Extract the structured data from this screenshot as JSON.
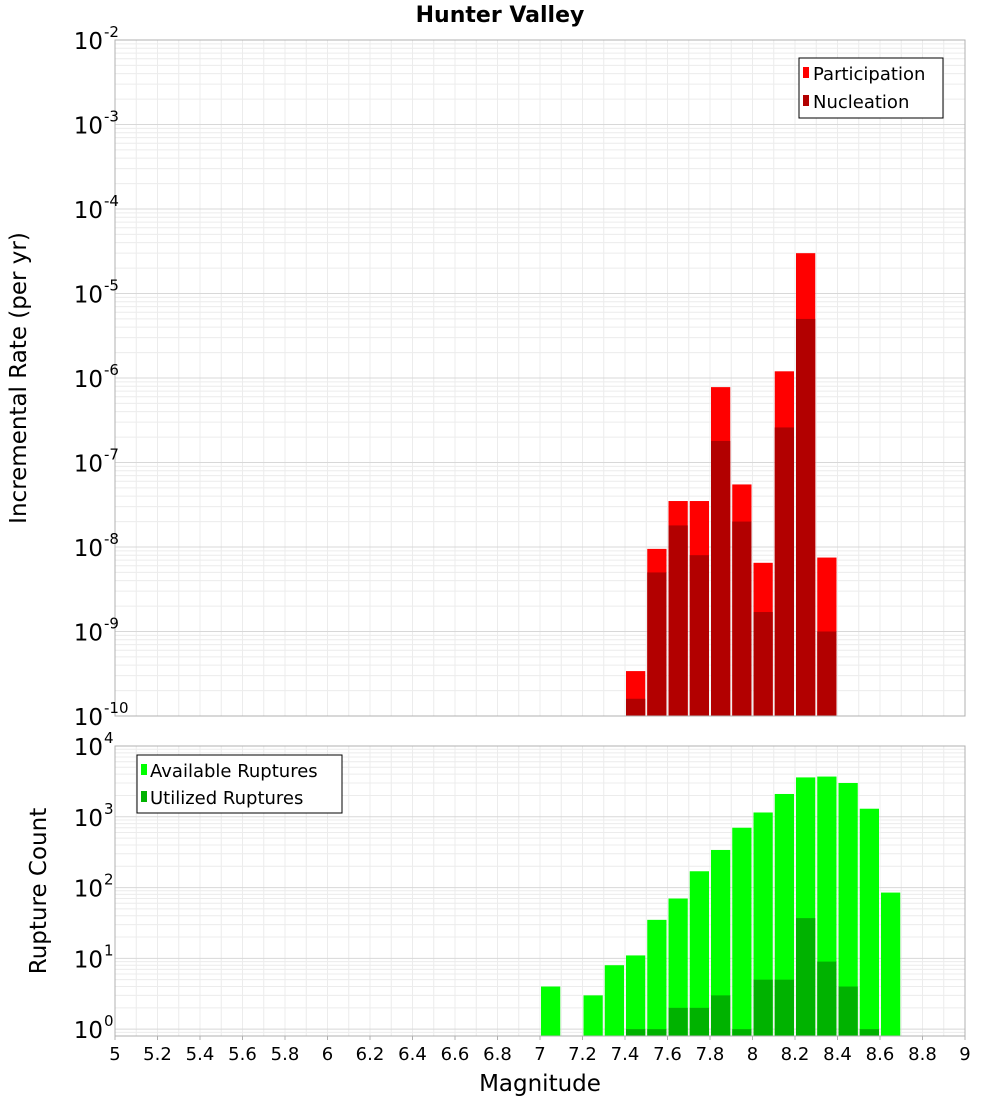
{
  "chart_data": [
    {
      "type": "bar",
      "title": "Hunter Valley",
      "xlabel": "",
      "ylabel": "Incremental Rate (per yr)",
      "yscale": "log",
      "ylim": [
        1e-10,
        0.01
      ],
      "xlim": [
        5,
        9
      ],
      "grid": true,
      "legend_position": "top-right",
      "y_ticks": [
        {
          "base": "10",
          "exp": "-10",
          "value": 1e-10
        },
        {
          "base": "10",
          "exp": "-9",
          "value": 1e-09
        },
        {
          "base": "10",
          "exp": "-8",
          "value": 1e-08
        },
        {
          "base": "10",
          "exp": "-7",
          "value": 1e-07
        },
        {
          "base": "10",
          "exp": "-6",
          "value": 1e-06
        },
        {
          "base": "10",
          "exp": "-5",
          "value": 1e-05
        },
        {
          "base": "10",
          "exp": "-4",
          "value": 0.0001
        },
        {
          "base": "10",
          "exp": "-3",
          "value": 0.001
        },
        {
          "base": "10",
          "exp": "-2",
          "value": 0.01
        }
      ],
      "x": [
        7.45,
        7.55,
        7.65,
        7.75,
        7.85,
        7.95,
        8.05,
        8.15,
        8.25,
        8.35
      ],
      "series": [
        {
          "name": "Participation",
          "color": "#ff0000",
          "values": [
            3.4e-10,
            9.5e-09,
            3.5e-08,
            3.5e-08,
            7.8e-07,
            5.5e-08,
            6.5e-09,
            1.2e-06,
            3e-05,
            7.5e-09
          ]
        },
        {
          "name": "Nucleation",
          "color": "#b20000",
          "values": [
            1.6e-10,
            5e-09,
            1.8e-08,
            8e-09,
            1.8e-07,
            2e-08,
            1.7e-09,
            2.6e-07,
            5e-06,
            1e-09
          ]
        }
      ]
    },
    {
      "type": "bar",
      "xlabel": "Magnitude",
      "ylabel": "Rupture Count",
      "yscale": "log",
      "ylim": [
        0.8,
        10000
      ],
      "xlim": [
        5,
        9
      ],
      "grid": true,
      "legend_position": "top-left",
      "y_ticks": [
        {
          "base": "10",
          "exp": "0",
          "value": 1
        },
        {
          "base": "10",
          "exp": "1",
          "value": 10
        },
        {
          "base": "10",
          "exp": "2",
          "value": 100
        },
        {
          "base": "10",
          "exp": "3",
          "value": 1000
        },
        {
          "base": "10",
          "exp": "4",
          "value": 10000
        }
      ],
      "x_ticks": [
        "5",
        "5.2",
        "5.4",
        "5.6",
        "5.8",
        "6",
        "6.2",
        "6.4",
        "6.6",
        "6.8",
        "7",
        "7.2",
        "7.4",
        "7.6",
        "7.8",
        "8",
        "8.2",
        "8.4",
        "8.6",
        "8.8",
        "9"
      ],
      "x": [
        7.05,
        7.25,
        7.35,
        7.45,
        7.55,
        7.65,
        7.75,
        7.85,
        7.95,
        8.05,
        8.15,
        8.25,
        8.35,
        8.45,
        8.55,
        8.65
      ],
      "series": [
        {
          "name": "Available Ruptures",
          "color": "#00ff00",
          "values": [
            4,
            3,
            8,
            11,
            35,
            70,
            170,
            340,
            700,
            1150,
            2100,
            3600,
            3700,
            3000,
            1300,
            85
          ]
        },
        {
          "name": "Utilized Ruptures",
          "color": "#00b200",
          "values": [
            0,
            0,
            0,
            1,
            1,
            2,
            2,
            3,
            1,
            5,
            5,
            37,
            9,
            4,
            1,
            0
          ]
        }
      ]
    }
  ]
}
